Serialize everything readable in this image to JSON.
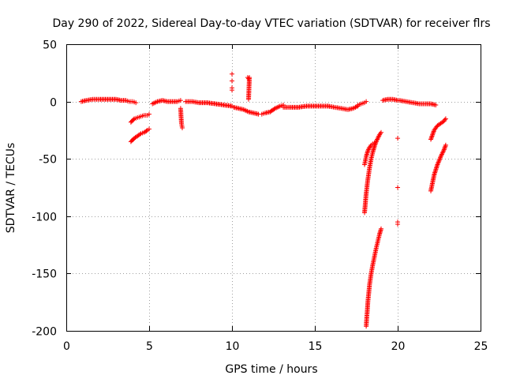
{
  "chart_data": {
    "type": "scatter",
    "title": "Day 290 of 2022, Sidereal Day-to-day VTEC variation (SDTVAR) for receiver flrs",
    "xlabel": "GPS time / hours",
    "ylabel": "SDTVAR / TECUs",
    "xlim": [
      0,
      25
    ],
    "ylim": [
      -200,
      50
    ],
    "xticks": [
      0,
      5,
      10,
      15,
      20,
      25
    ],
    "yticks": [
      50,
      0,
      -50,
      -100,
      -150,
      -200
    ],
    "grid": true,
    "marker": "+",
    "color": "#ff0000",
    "series": [
      {
        "name": "SDTVAR",
        "segments": [
          {
            "x": [
              0.9,
              1.2,
              1.6,
              2.0,
              2.5,
              3.0,
              3.3,
              3.6,
              3.8,
              4.0,
              4.2
            ],
            "y": [
              0,
              1,
              2,
              2,
              2,
              2,
              1,
              1,
              0,
              0,
              -1
            ]
          },
          {
            "x": [
              3.9,
              4.1,
              4.3,
              4.5,
              4.7,
              4.9,
              5.0
            ],
            "y": [
              -18,
              -15,
              -14,
              -13,
              -12,
              -12,
              -11
            ]
          },
          {
            "x": [
              3.9,
              4.1,
              4.3,
              4.5,
              4.7,
              4.9,
              5.0
            ],
            "y": [
              -35,
              -32,
              -30,
              -28,
              -27,
              -25,
              -24
            ]
          },
          {
            "x": [
              5.2,
              5.5,
              5.8,
              6.1,
              6.4,
              6.7,
              6.9
            ],
            "y": [
              -2,
              0,
              1,
              0,
              0,
              0,
              1
            ]
          },
          {
            "x": [
              6.9,
              6.95,
              7.0
            ],
            "y": [
              -6,
              -19,
              -23
            ]
          },
          {
            "x": [
              7.2,
              7.6,
              8.0,
              8.5,
              9.0,
              9.5,
              10.0
            ],
            "y": [
              0,
              0,
              -1,
              -1,
              -2,
              -3,
              -4
            ]
          },
          {
            "x": [
              10.0,
              10.0,
              10.0,
              10.0
            ],
            "y": [
              24,
              18,
              12,
              10
            ]
          },
          {
            "x": [
              10.1,
              10.4,
              10.7,
              11.0,
              11.3,
              11.6
            ],
            "y": [
              -5,
              -6,
              -7,
              -9,
              -10,
              -11
            ]
          },
          {
            "x": [
              10.95,
              11.0,
              11.05,
              11.0
            ],
            "y": [
              21,
              20,
              21,
              2
            ]
          },
          {
            "x": [
              11.8,
              12.0,
              12.3,
              12.6,
              12.9,
              13.1
            ],
            "y": [
              -11,
              -10,
              -9,
              -6,
              -4,
              -3
            ]
          },
          {
            "x": [
              13.1,
              13.5,
              14.0,
              14.5,
              15.0,
              15.5,
              15.8
            ],
            "y": [
              -5,
              -5,
              -5,
              -4,
              -4,
              -4,
              -4
            ]
          },
          {
            "x": [
              15.8,
              16.2,
              16.6,
              17.0,
              17.3,
              17.6
            ],
            "y": [
              -4,
              -5,
              -6,
              -7,
              -6,
              -4
            ]
          },
          {
            "x": [
              17.6,
              17.8,
              18.0,
              18.1
            ],
            "y": [
              -3,
              -2,
              -1,
              0
            ]
          },
          {
            "x": [
              18.0,
              18.1,
              18.2,
              18.3,
              18.4,
              18.5,
              18.6,
              18.7,
              18.8,
              18.9,
              19.0
            ],
            "y": [
              -97,
              -80,
              -68,
              -58,
              -50,
              -44,
              -39,
              -35,
              -32,
              -29,
              -27
            ]
          },
          {
            "x": [
              18.0,
              18.1,
              18.2,
              18.3,
              18.4,
              18.5,
              18.6
            ],
            "y": [
              -55,
              -48,
              -43,
              -40,
              -38,
              -37,
              -36
            ]
          },
          {
            "x": [
              18.1,
              18.2,
              18.3,
              18.4,
              18.5,
              18.6,
              18.7,
              18.8,
              18.9,
              19.0
            ],
            "y": [
              -196,
              -175,
              -160,
              -150,
              -142,
              -135,
              -128,
              -122,
              -116,
              -111
            ]
          },
          {
            "x": [
              19.1,
              19.4,
              19.7,
              20.0
            ],
            "y": [
              1,
              2,
              2,
              1
            ]
          },
          {
            "x": [
              20.0,
              20.0,
              20.0,
              20.0
            ],
            "y": [
              -32,
              -75,
              -105,
              -107
            ]
          },
          {
            "x": [
              20.1,
              20.5,
              20.9,
              21.3,
              21.7,
              22.0,
              22.3
            ],
            "y": [
              1,
              0,
              -1,
              -2,
              -2,
              -2,
              -3
            ]
          },
          {
            "x": [
              22.0,
              22.2,
              22.4,
              22.6,
              22.8,
              22.9
            ],
            "y": [
              -33,
              -25,
              -21,
              -19,
              -17,
              -15
            ]
          },
          {
            "x": [
              22.0,
              22.2,
              22.4,
              22.6,
              22.8,
              22.9
            ],
            "y": [
              -78,
              -64,
              -55,
              -48,
              -42,
              -38
            ]
          }
        ]
      }
    ]
  }
}
